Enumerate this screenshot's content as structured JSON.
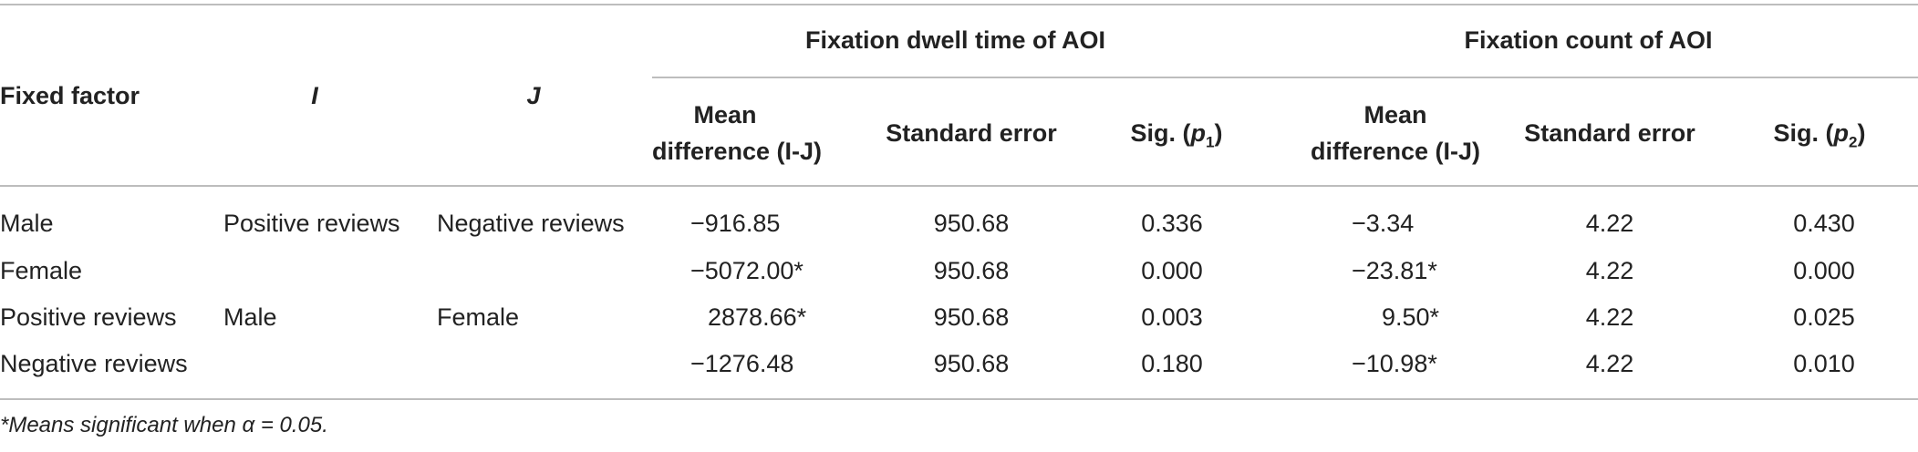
{
  "table": {
    "header": {
      "fixed_factor": "Fixed factor",
      "i": "I",
      "j": "J",
      "group1": "Fixation dwell time of AOI",
      "group2": "Fixation count of AOI",
      "mean_diff_line1": "Mean",
      "mean_diff_line2": "difference (I-J)",
      "std_error": "Standard error",
      "sig1_prefix": "Sig. (",
      "sig1_var": "p",
      "sig1_sub": "1",
      "sig1_suffix": ")",
      "sig2_prefix": "Sig. (",
      "sig2_var": "p",
      "sig2_sub": "2",
      "sig2_suffix": ")"
    },
    "rows": [
      {
        "fixed_factor": "Male",
        "i": "Positive reviews",
        "j": "Negative reviews",
        "md1": "−916.85",
        "se1": "950.68",
        "sig1": "0.336",
        "md2": "−3.34",
        "se2": "4.22",
        "sig2": "0.430"
      },
      {
        "fixed_factor": "Female",
        "i": "",
        "j": "",
        "md1": "−5072.00*",
        "se1": "950.68",
        "sig1": "0.000",
        "md2": "−23.81*",
        "se2": "4.22",
        "sig2": "0.000"
      },
      {
        "fixed_factor": "Positive reviews",
        "i": "Male",
        "j": "Female",
        "md1": "2878.66*",
        "se1": "950.68",
        "sig1": "0.003",
        "md2": "9.50*",
        "se2": "4.22",
        "sig2": "0.025"
      },
      {
        "fixed_factor": "Negative reviews",
        "i": "",
        "j": "",
        "md1": "−1276.48",
        "se1": "950.68",
        "sig1": "0.180",
        "md2": "−10.98*",
        "se2": "4.22",
        "sig2": "0.010"
      }
    ],
    "footnote": "*Means significant when α = 0.05."
  }
}
